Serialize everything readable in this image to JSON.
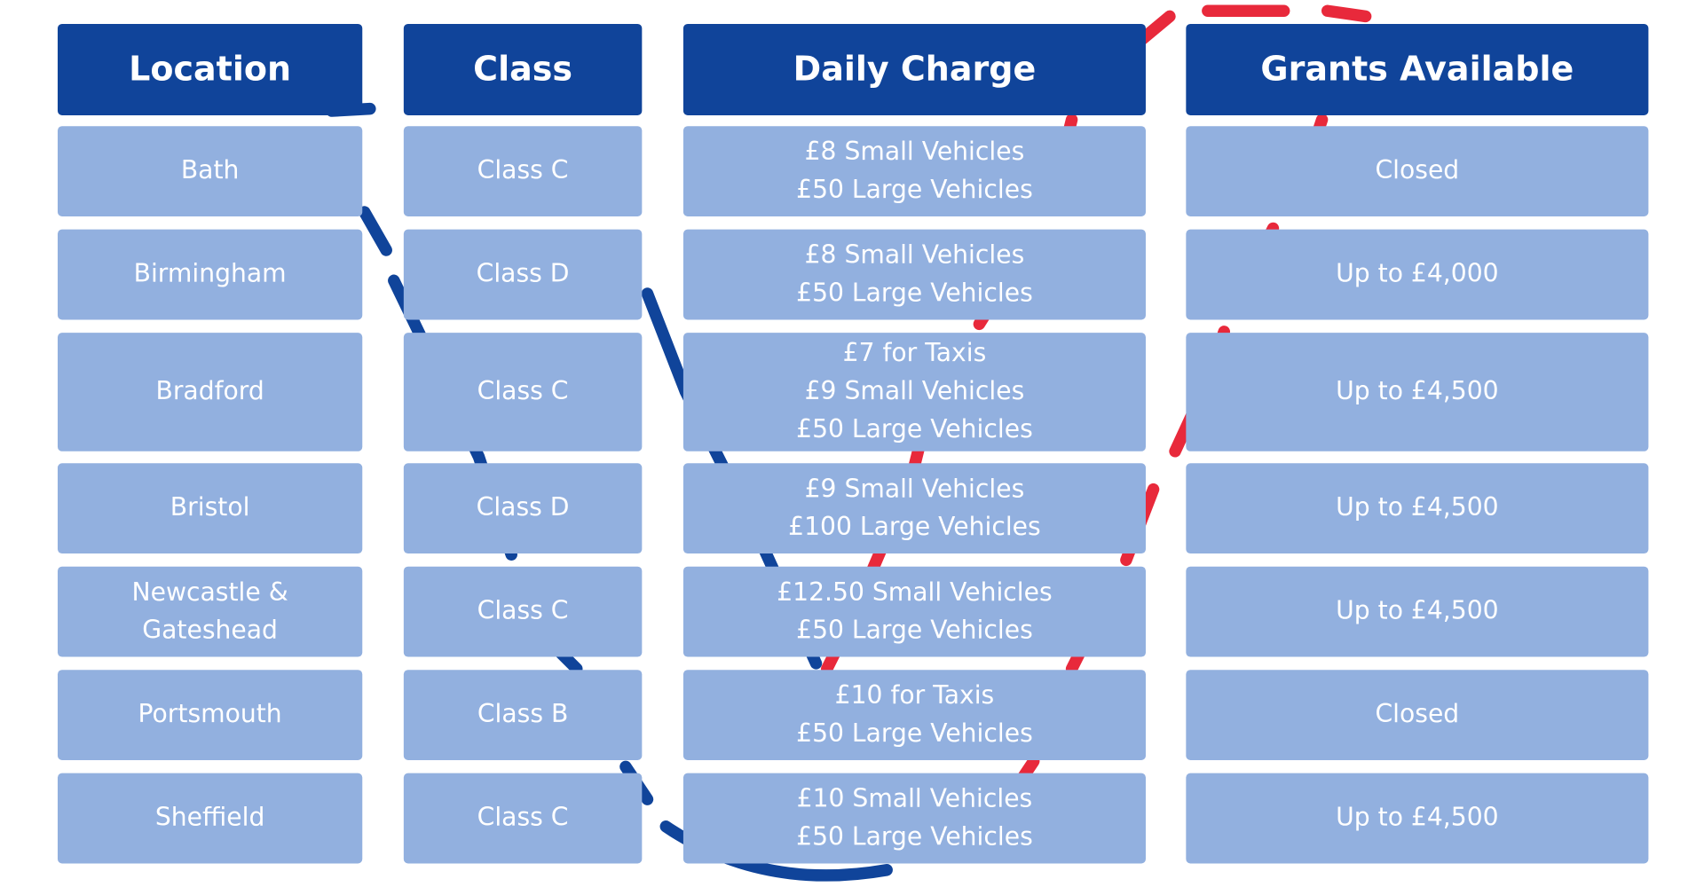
{
  "colors": {
    "header": "#10449a",
    "cell": "#92b0df",
    "accent_red": "#e8293b",
    "accent_blue": "#10449a"
  },
  "headers": [
    "Location",
    "Class",
    "Daily Charge",
    "Grants Available"
  ],
  "rows": [
    {
      "location": [
        "Bath"
      ],
      "class": "Class C",
      "charge": [
        "£8 Small Vehicles",
        "£50 Large Vehicles"
      ],
      "grants": "Closed"
    },
    {
      "location": [
        "Birmingham"
      ],
      "class": "Class D",
      "charge": [
        "£8 Small Vehicles",
        "£50 Large Vehicles"
      ],
      "grants": "Up to £4,000"
    },
    {
      "location": [
        "Bradford"
      ],
      "class": "Class C",
      "charge": [
        "£7 for Taxis",
        "£9 Small Vehicles",
        "£50 Large Vehicles"
      ],
      "grants": "Up to £4,500"
    },
    {
      "location": [
        "Bristol"
      ],
      "class": "Class D",
      "charge": [
        "£9 Small Vehicles",
        "£100 Large Vehicles"
      ],
      "grants": "Up to £4,500"
    },
    {
      "location": [
        "Newcastle &",
        "Gateshead"
      ],
      "class": "Class C",
      "charge": [
        "£12.50 Small Vehicles",
        "£50 Large Vehicles"
      ],
      "grants": "Up to £4,500"
    },
    {
      "location": [
        "Portsmouth"
      ],
      "class": "Class B",
      "charge": [
        "£10 for Taxis",
        "£50 Large Vehicles"
      ],
      "grants": "Closed"
    },
    {
      "location": [
        "Sheffield"
      ],
      "class": "Class C",
      "charge": [
        "£10 Small Vehicles",
        "£50 Large Vehicles"
      ],
      "grants": "Up to £4,500"
    }
  ]
}
